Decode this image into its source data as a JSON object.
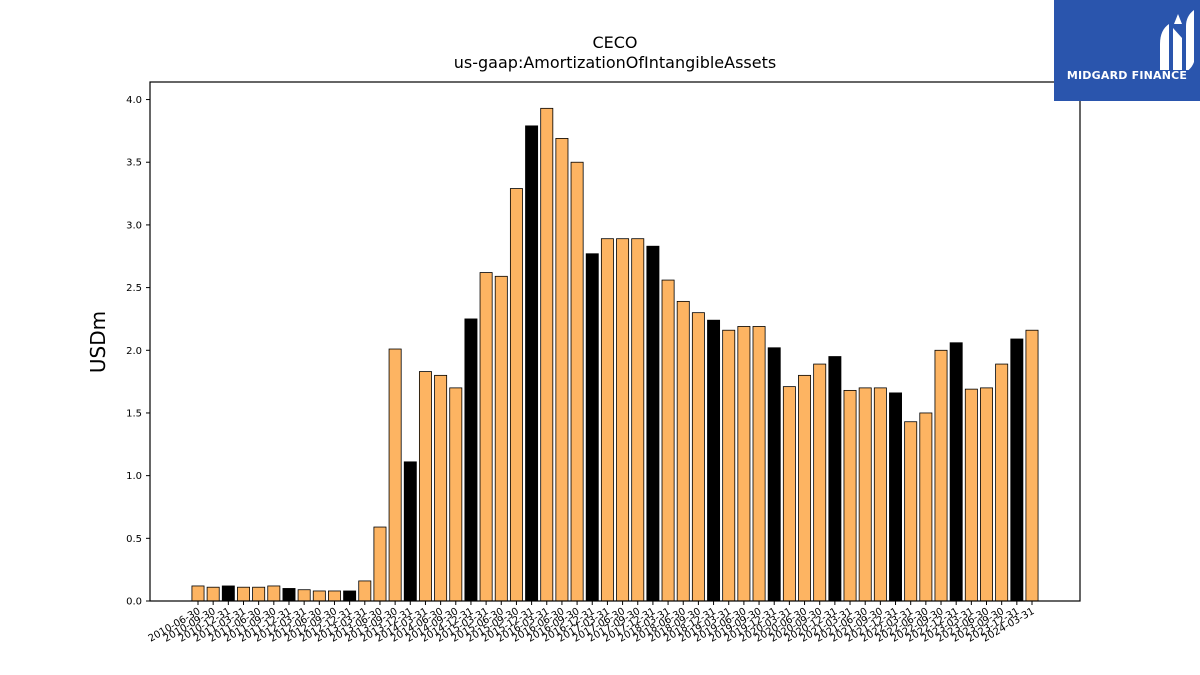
{
  "brand": {
    "name": "MIDGARD FINANCE",
    "color": "#2a55ad"
  },
  "chart_data": {
    "type": "bar",
    "title": "CECO",
    "subtitle": "us-gaap:AmortizationOfIntangibleAssets",
    "ylabel": "USDm",
    "xlabel": "",
    "ylim": [
      0,
      4.14
    ],
    "yticks": [
      0.0,
      0.5,
      1.0,
      1.5,
      2.0,
      2.5,
      3.0,
      3.5,
      4.0
    ],
    "grid": false,
    "colors": {
      "quarterly": "#fdb462",
      "annual": "#000000",
      "edge": "#000000"
    },
    "categories": [
      "2010-06-30",
      "2010-09-30",
      "2010-12-31",
      "2011-03-31",
      "2011-06-30",
      "2011-09-30",
      "2011-12-31",
      "2012-03-31",
      "2012-06-30",
      "2012-09-30",
      "2012-12-31",
      "2013-03-31",
      "2013-06-30",
      "2013-09-30",
      "2013-12-31",
      "2014-03-31",
      "2014-06-30",
      "2014-09-30",
      "2014-12-31",
      "2015-03-31",
      "2015-06-30",
      "2015-09-30",
      "2015-12-31",
      "2016-03-31",
      "2016-06-30",
      "2016-09-30",
      "2016-12-31",
      "2017-03-31",
      "2017-06-30",
      "2017-09-30",
      "2017-12-31",
      "2018-03-31",
      "2018-06-30",
      "2018-09-30",
      "2018-12-31",
      "2019-03-31",
      "2019-06-30",
      "2019-09-30",
      "2019-12-31",
      "2020-03-31",
      "2020-06-30",
      "2020-09-30",
      "2020-12-31",
      "2021-03-31",
      "2021-06-30",
      "2021-09-30",
      "2021-12-31",
      "2022-03-31",
      "2022-06-30",
      "2022-09-30",
      "2022-12-31",
      "2023-03-31",
      "2023-06-30",
      "2023-09-30",
      "2023-12-31",
      "2024-03-31"
    ],
    "values": [
      0.12,
      0.11,
      0.12,
      0.11,
      0.11,
      0.12,
      0.1,
      0.09,
      0.08,
      0.08,
      0.08,
      0.16,
      0.59,
      2.01,
      1.11,
      1.83,
      1.8,
      1.7,
      2.25,
      2.62,
      2.59,
      3.29,
      3.79,
      3.93,
      3.69,
      3.5,
      2.77,
      2.89,
      2.89,
      2.89,
      2.83,
      2.56,
      2.39,
      2.3,
      2.24,
      2.16,
      2.19,
      2.19,
      2.02,
      1.71,
      1.8,
      1.89,
      1.95,
      1.68,
      1.7,
      1.7,
      1.66,
      1.43,
      1.5,
      2.0,
      2.06,
      1.69,
      1.7,
      1.89,
      2.09,
      2.16
    ],
    "annual": [
      false,
      false,
      true,
      false,
      false,
      false,
      true,
      false,
      false,
      false,
      true,
      false,
      false,
      false,
      true,
      false,
      false,
      false,
      true,
      false,
      false,
      false,
      true,
      false,
      false,
      false,
      true,
      false,
      false,
      false,
      true,
      false,
      false,
      false,
      true,
      false,
      false,
      false,
      true,
      false,
      false,
      false,
      true,
      false,
      false,
      false,
      true,
      false,
      false,
      false,
      true,
      false,
      false,
      false,
      true,
      false
    ]
  }
}
